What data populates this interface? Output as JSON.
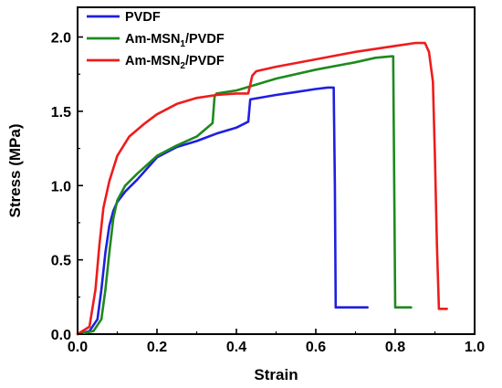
{
  "chart_data": {
    "type": "line",
    "title": "",
    "xlabel": "Strain",
    "ylabel": "Stress (MPa)",
    "xlim": [
      0.0,
      1.0
    ],
    "ylim": [
      0.0,
      2.2
    ],
    "xticks": [
      0.0,
      0.2,
      0.4,
      0.6,
      0.8,
      1.0
    ],
    "xtick_labels": [
      "0.0",
      "0.2",
      "0.4",
      "0.6",
      "0.8",
      "1.0"
    ],
    "yticks": [
      0.0,
      0.5,
      1.0,
      1.5,
      2.0
    ],
    "ytick_labels": [
      "0.0",
      "0.5",
      "1.0",
      "1.5",
      "2.0"
    ],
    "grid": false,
    "legend_position": "top-left",
    "series": [
      {
        "name": "PVDF",
        "legend_main": "PVDF",
        "legend_sub": "",
        "legend_tail": "",
        "color": "#1f1fe0",
        "x": [
          0.0,
          0.03,
          0.05,
          0.06,
          0.07,
          0.08,
          0.09,
          0.1,
          0.12,
          0.15,
          0.18,
          0.2,
          0.25,
          0.3,
          0.35,
          0.4,
          0.43,
          0.435,
          0.5,
          0.55,
          0.6,
          0.63,
          0.645,
          0.648,
          0.65,
          0.73
        ],
        "y": [
          0.0,
          0.02,
          0.1,
          0.3,
          0.55,
          0.73,
          0.83,
          0.89,
          0.96,
          1.04,
          1.13,
          1.19,
          1.26,
          1.3,
          1.35,
          1.39,
          1.43,
          1.58,
          1.61,
          1.63,
          1.65,
          1.66,
          1.66,
          1.0,
          0.18,
          0.18
        ]
      },
      {
        "name": "Am-MSN1/PVDF",
        "legend_main": "Am-MSN",
        "legend_sub": "1",
        "legend_tail": "/PVDF",
        "color": "#1e8a1e",
        "x": [
          0.0,
          0.04,
          0.06,
          0.07,
          0.08,
          0.09,
          0.1,
          0.12,
          0.15,
          0.2,
          0.25,
          0.3,
          0.34,
          0.345,
          0.35,
          0.4,
          0.45,
          0.5,
          0.6,
          0.7,
          0.75,
          0.79,
          0.795,
          0.8,
          0.84
        ],
        "y": [
          0.0,
          0.02,
          0.1,
          0.3,
          0.55,
          0.78,
          0.9,
          1.0,
          1.08,
          1.2,
          1.27,
          1.33,
          1.42,
          1.6,
          1.62,
          1.64,
          1.68,
          1.72,
          1.78,
          1.83,
          1.86,
          1.87,
          1.87,
          0.18,
          0.18
        ]
      },
      {
        "name": "Am-MSN2/PVDF",
        "legend_main": "Am-MSN",
        "legend_sub": "2",
        "legend_tail": "/PVDF",
        "color": "#ee1c1c",
        "x": [
          0.0,
          0.03,
          0.045,
          0.055,
          0.065,
          0.08,
          0.1,
          0.13,
          0.17,
          0.2,
          0.25,
          0.3,
          0.35,
          0.4,
          0.43,
          0.44,
          0.45,
          0.5,
          0.6,
          0.7,
          0.8,
          0.85,
          0.875,
          0.885,
          0.895,
          0.9,
          0.905,
          0.91,
          0.93
        ],
        "y": [
          0.0,
          0.05,
          0.3,
          0.6,
          0.85,
          1.03,
          1.2,
          1.33,
          1.42,
          1.48,
          1.55,
          1.59,
          1.61,
          1.62,
          1.62,
          1.74,
          1.77,
          1.8,
          1.85,
          1.9,
          1.94,
          1.96,
          1.96,
          1.9,
          1.7,
          1.2,
          0.6,
          0.17,
          0.17
        ]
      }
    ]
  }
}
